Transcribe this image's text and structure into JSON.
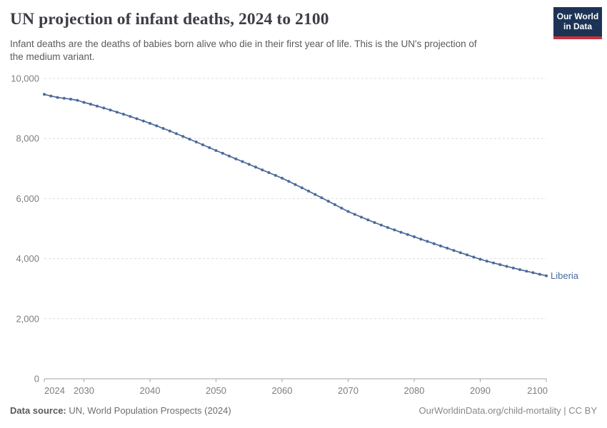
{
  "header": {
    "title": "UN projection of infant deaths, 2024 to 2100",
    "subtitle_line1": "Infant deaths are the deaths of babies born alive who die in their first year of life. This is the UN's projection of",
    "subtitle_line2": "the medium variant.",
    "logo": {
      "line1": "Our World",
      "line2": "in Data"
    }
  },
  "chart_data": {
    "type": "line",
    "title": "UN projection of infant deaths, 2024 to 2100",
    "xlabel": "",
    "ylabel": "",
    "xlim": [
      2024,
      2100
    ],
    "ylim": [
      0,
      10000
    ],
    "grid": "horizontal-dashed",
    "legend_position": "end-of-line-label",
    "x_ticks": [
      2024,
      2030,
      2040,
      2050,
      2060,
      2070,
      2080,
      2090,
      2100
    ],
    "y_ticks": [
      0,
      2000,
      4000,
      6000,
      8000,
      10000
    ],
    "y_tick_labels": [
      "0",
      "2,000",
      "4,000",
      "6,000",
      "8,000",
      "10,000"
    ],
    "series": [
      {
        "name": "Liberia",
        "color": "#4c6a9c",
        "x": [
          2024,
          2025,
          2026,
          2027,
          2028,
          2029,
          2030,
          2031,
          2032,
          2033,
          2034,
          2035,
          2036,
          2037,
          2038,
          2039,
          2040,
          2041,
          2042,
          2043,
          2044,
          2045,
          2046,
          2047,
          2048,
          2049,
          2050,
          2051,
          2052,
          2053,
          2054,
          2055,
          2056,
          2057,
          2058,
          2059,
          2060,
          2061,
          2062,
          2063,
          2064,
          2065,
          2066,
          2067,
          2068,
          2069,
          2070,
          2071,
          2072,
          2073,
          2074,
          2075,
          2076,
          2077,
          2078,
          2079,
          2080,
          2081,
          2082,
          2083,
          2084,
          2085,
          2086,
          2087,
          2088,
          2089,
          2090,
          2091,
          2092,
          2093,
          2094,
          2095,
          2096,
          2097,
          2098,
          2099,
          2100
        ],
        "values": [
          9470,
          9415,
          9368,
          9340,
          9312,
          9272,
          9205,
          9144,
          9081,
          9016,
          8949,
          8880,
          8809,
          8736,
          8661,
          8584,
          8505,
          8423,
          8338,
          8251,
          8162,
          8071,
          7979,
          7886,
          7792,
          7697,
          7600,
          7508,
          7416,
          7324,
          7232,
          7140,
          7048,
          6956,
          6864,
          6772,
          6680,
          6575,
          6468,
          6359,
          6249,
          6138,
          6026,
          5913,
          5799,
          5685,
          5570,
          5475,
          5382,
          5291,
          5203,
          5118,
          5036,
          4957,
          4880,
          4805,
          4730,
          4652,
          4575,
          4499,
          4423,
          4348,
          4273,
          4199,
          4125,
          4052,
          3980,
          3918,
          3858,
          3800,
          3743,
          3688,
          3634,
          3582,
          3531,
          3480,
          3430
        ]
      }
    ]
  },
  "footer": {
    "source_label": "Data source:",
    "source_text": " UN, World Population Prospects (2024)",
    "credit": "OurWorldinData.org/child-mortality | CC BY"
  },
  "colors": {
    "line": "#4c6a9c",
    "grid": "#dcdcdc",
    "axis": "#a3a3a3",
    "tick_text": "#7e7e7e",
    "logo_bg": "#1d3356",
    "logo_accent": "#c8333a"
  }
}
